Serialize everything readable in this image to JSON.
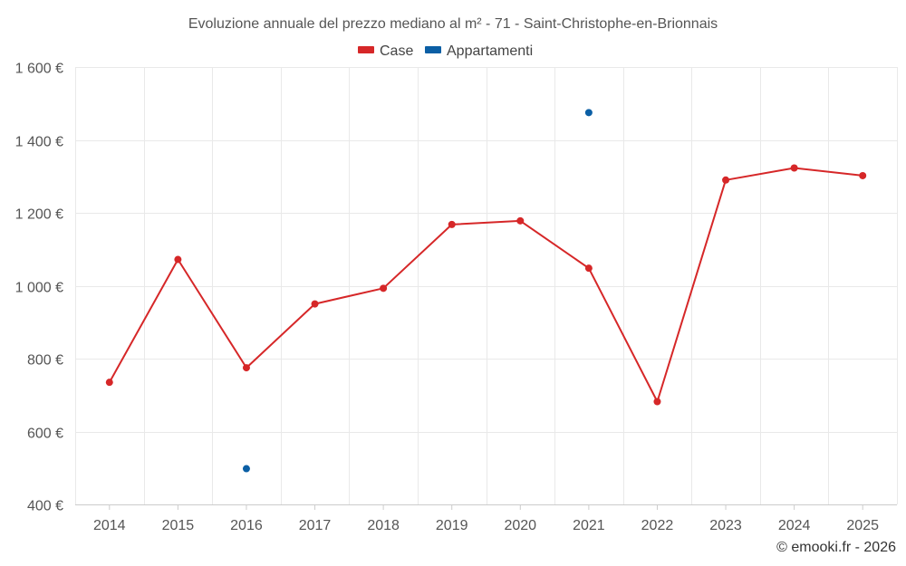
{
  "chart_data": {
    "type": "line",
    "title": "Evoluzione annuale del prezzo mediano al m² - 71 - Saint-Christophe-en-Brionnais",
    "categories": [
      "2014",
      "2015",
      "2016",
      "2017",
      "2018",
      "2019",
      "2020",
      "2021",
      "2022",
      "2023",
      "2024",
      "2025"
    ],
    "ylim": [
      400,
      1600
    ],
    "yticks": [
      400,
      600,
      800,
      1000,
      1200,
      1400,
      1600
    ],
    "ytick_labels": [
      "400 €",
      "600 €",
      "800 €",
      "1 000 €",
      "1 200 €",
      "1 400 €",
      "1 600 €"
    ],
    "grid": true,
    "legend_position": "top-center",
    "series": [
      {
        "name": "Case",
        "color": "#d62728",
        "style": "line-markers",
        "values": [
          735,
          1072,
          775,
          950,
          993,
          1168,
          1178,
          1048,
          682,
          1290,
          1323,
          1302
        ]
      },
      {
        "name": "Appartamenti",
        "color": "#0b5fa5",
        "style": "markers",
        "values": [
          null,
          null,
          498,
          null,
          null,
          null,
          null,
          1475,
          null,
          null,
          null,
          null
        ]
      }
    ]
  },
  "credit": "© emooki.fr - 2026"
}
